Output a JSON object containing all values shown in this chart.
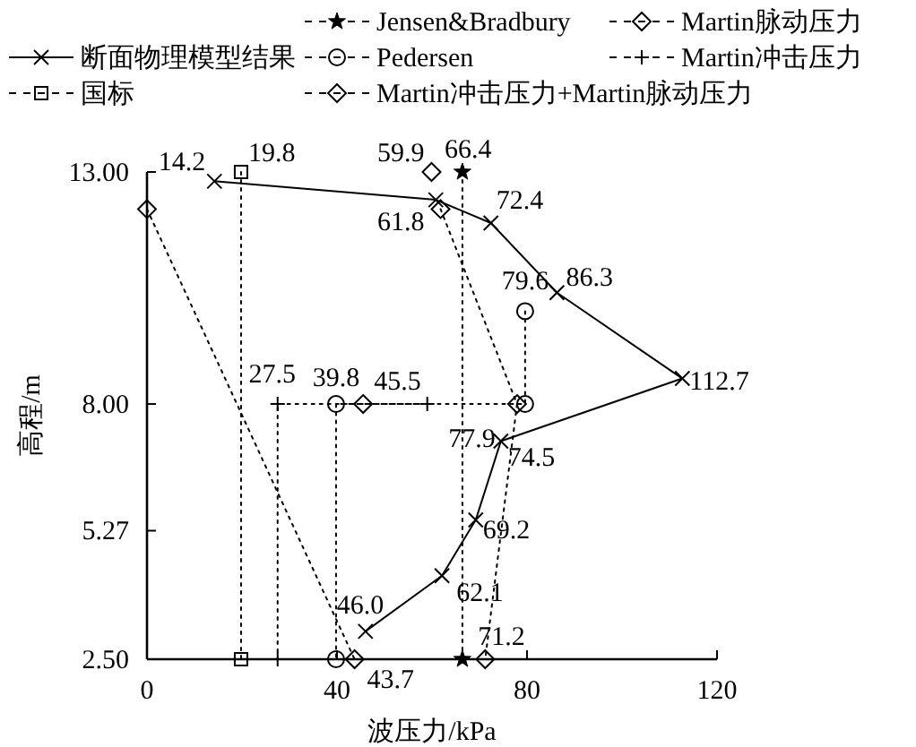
{
  "chart_data": {
    "type": "line",
    "orientation": "horizontal",
    "xlabel": "波压力/kPa",
    "ylabel": "高程/m",
    "xlim": [
      0,
      120
    ],
    "ylim": [
      2.5,
      13
    ],
    "xticks": [
      0,
      40,
      80,
      120
    ],
    "yticks": [
      {
        "value": 2.5,
        "label": "2.50"
      },
      5.27,
      {
        "value": 8,
        "label": "8.00"
      },
      {
        "value": 13,
        "label": "13.00"
      }
    ],
    "legend": "top",
    "grid": false,
    "series": [
      {
        "name": "断面物理模型结果",
        "color": "#000000",
        "marker": "cross",
        "line_style": "solid",
        "x": [
          12.8,
          12.4,
          11.9,
          10.4,
          8.55,
          7.2,
          5.5,
          4.3,
          3.1
        ],
        "values": [
          14.2,
          60.8,
          72.4,
          86.3,
          112.7,
          74.5,
          69.2,
          62.1,
          46.0
        ],
        "value_labels": [
          "14.2",
          null,
          "72.4",
          "86.3",
          "112.7",
          "74.5",
          "69.2",
          "62.1",
          "46.0"
        ]
      },
      {
        "name": "国标",
        "color": "#000000",
        "marker": "square",
        "line_style": "dotted",
        "x": [
          13,
          2.5
        ],
        "values": [
          19.8,
          19.8
        ],
        "value_labels": [
          "19.8",
          null
        ]
      },
      {
        "name": "Jensen&Bradbury",
        "color": "#000000",
        "marker": "star",
        "line_style": "dotted",
        "x": [
          13,
          2.5
        ],
        "values": [
          66.4,
          66.4
        ],
        "value_labels": [
          "66.4",
          null
        ]
      },
      {
        "name": "Pedersen",
        "color": "#000000",
        "marker": "circle",
        "line_style": "dotted",
        "x": [
          10.0,
          8,
          8,
          2.5
        ],
        "values": [
          79.6,
          79.6,
          39.8,
          39.8
        ],
        "value_labels": [
          "79.6",
          null,
          "39.8",
          null
        ]
      },
      {
        "name": "Martin冲击压力+Martin脉动压力",
        "color": "#000000",
        "marker": "diamond",
        "line_style": "dotted",
        "x": [
          12.2,
          8,
          2.5
        ],
        "values": [
          61.8,
          77.9,
          71.2
        ],
        "value_labels": [
          "61.8",
          "77.9",
          "71.2"
        ]
      },
      {
        "name": "Martin脉动压力",
        "color": "#000000",
        "marker": "diamond",
        "line_style": "dotted",
        "x": [
          13,
          null,
          12.2,
          2.5,
          null,
          8
        ],
        "values": [
          59.9,
          null,
          0,
          43.7,
          null,
          45.5
        ],
        "value_labels": [
          "59.9",
          null,
          null,
          "43.7",
          null,
          "45.5"
        ]
      },
      {
        "name": "Martin冲击压力",
        "color": "#000000",
        "marker": "plus",
        "line_style": "dotted",
        "x": [
          8,
          8,
          2.5
        ],
        "values": [
          59,
          27.5,
          27.5
        ],
        "value_labels": [
          null,
          "27.5",
          null
        ]
      }
    ]
  }
}
